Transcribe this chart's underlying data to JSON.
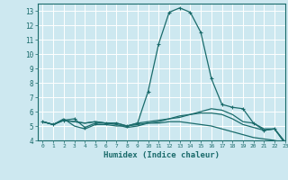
{
  "xlabel": "Humidex (Indice chaleur)",
  "bg_color": "#cde8f0",
  "grid_color": "#ffffff",
  "line_color": "#1a6b6b",
  "xlim": [
    -0.5,
    23
  ],
  "ylim": [
    4,
    13.5
  ],
  "xticks": [
    0,
    1,
    2,
    3,
    4,
    5,
    6,
    7,
    8,
    9,
    10,
    11,
    12,
    13,
    14,
    15,
    16,
    17,
    18,
    19,
    20,
    21,
    22,
    23
  ],
  "yticks": [
    4,
    5,
    6,
    7,
    8,
    9,
    10,
    11,
    12,
    13
  ],
  "series": [
    {
      "x": [
        0,
        1,
        2,
        3,
        4,
        5,
        6,
        7,
        8,
        9,
        10,
        11,
        12,
        13,
        14,
        15,
        16,
        17,
        18,
        19,
        20,
        21,
        22,
        23
      ],
      "y": [
        5.3,
        5.1,
        5.4,
        5.5,
        4.9,
        5.2,
        5.2,
        5.2,
        5.0,
        5.2,
        7.4,
        10.7,
        12.9,
        13.2,
        12.9,
        11.5,
        8.3,
        6.5,
        6.3,
        6.2,
        5.2,
        4.7,
        4.8,
        3.8
      ],
      "marker": "+"
    },
    {
      "x": [
        0,
        1,
        2,
        3,
        4,
        5,
        6,
        7,
        8,
        9,
        10,
        11,
        12,
        13,
        14,
        15,
        16,
        17,
        18,
        19,
        20,
        21,
        22,
        23
      ],
      "y": [
        5.3,
        5.1,
        5.4,
        5.3,
        5.2,
        5.3,
        5.2,
        5.1,
        4.9,
        5.0,
        5.2,
        5.3,
        5.5,
        5.6,
        5.8,
        6.0,
        6.2,
        6.1,
        5.8,
        5.3,
        5.2,
        4.8,
        4.8,
        3.9
      ],
      "marker": null
    },
    {
      "x": [
        0,
        1,
        2,
        3,
        4,
        5,
        6,
        7,
        8,
        9,
        10,
        11,
        12,
        13,
        14,
        15,
        16,
        17,
        18,
        19,
        20,
        21,
        22,
        23
      ],
      "y": [
        5.3,
        5.1,
        5.5,
        5.0,
        4.8,
        5.1,
        5.1,
        5.0,
        5.0,
        5.1,
        5.2,
        5.2,
        5.3,
        5.3,
        5.2,
        5.1,
        5.0,
        4.8,
        4.6,
        4.4,
        4.2,
        4.1,
        4.0,
        3.8
      ],
      "marker": null
    },
    {
      "x": [
        0,
        1,
        2,
        3,
        4,
        5,
        6,
        7,
        8,
        9,
        10,
        11,
        12,
        13,
        14,
        15,
        16,
        17,
        18,
        19,
        20,
        21,
        22,
        23
      ],
      "y": [
        5.3,
        5.1,
        5.4,
        5.3,
        5.2,
        5.3,
        5.2,
        5.2,
        5.0,
        5.2,
        5.3,
        5.4,
        5.5,
        5.7,
        5.8,
        5.9,
        5.9,
        5.8,
        5.5,
        5.1,
        4.9,
        4.7,
        4.8,
        3.8
      ],
      "marker": null
    }
  ]
}
